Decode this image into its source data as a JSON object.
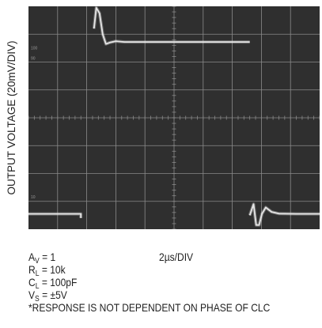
{
  "y_axis_label": "OUTPUT VOLTAGE (20mV/DIV)",
  "x_scale_label": "2µs/DIV",
  "graticule_marks": [
    "100",
    "90",
    "10"
  ],
  "conditions": [
    {
      "symbol": "A",
      "subscript": "V",
      "value": " = 1"
    },
    {
      "symbol": "R",
      "subscript": "L",
      "value": " = 10k"
    },
    {
      "symbol": "C",
      "subscript": "L",
      "value": " = 100pF"
    },
    {
      "symbol": "V",
      "subscript": "S",
      "value": " = ±5V"
    }
  ],
  "footnote": "*RESPONSE IS NOT DEPENDENT ON PHASE OF CLC",
  "colors": {
    "screen": "#2f2f2f",
    "grid": "#8a8a8a",
    "trace": "#e6e6e6"
  },
  "chart_data": {
    "type": "line",
    "title": "",
    "xlabel": "2µs/DIV",
    "ylabel": "OUTPUT VOLTAGE (20mV/DIV)",
    "x_unit": "div",
    "y_unit": "div",
    "xlim": [
      0,
      10
    ],
    "ylim": [
      0,
      8
    ],
    "grid": true,
    "divisions": {
      "x": 10,
      "y": 8
    },
    "series": [
      {
        "x": [
          0,
          1.8,
          1.8
        ],
        "y": [
          0.55,
          0.55,
          0.4
        ]
      },
      {
        "x": [
          2.25,
          2.33,
          2.44,
          2.55,
          2.66,
          2.8,
          3.0,
          3.3,
          7.6
        ],
        "y": [
          7.2,
          7.95,
          7.75,
          7.0,
          6.65,
          6.7,
          6.75,
          6.72,
          6.72
        ]
      },
      {
        "x": [
          7.6,
          7.73,
          7.82,
          7.92,
          8.02,
          8.15,
          8.35,
          8.6,
          9.2,
          10
        ],
        "y": [
          0.5,
          0.9,
          0.15,
          0.15,
          0.55,
          0.78,
          0.62,
          0.56,
          0.55,
          0.55
        ]
      }
    ]
  }
}
